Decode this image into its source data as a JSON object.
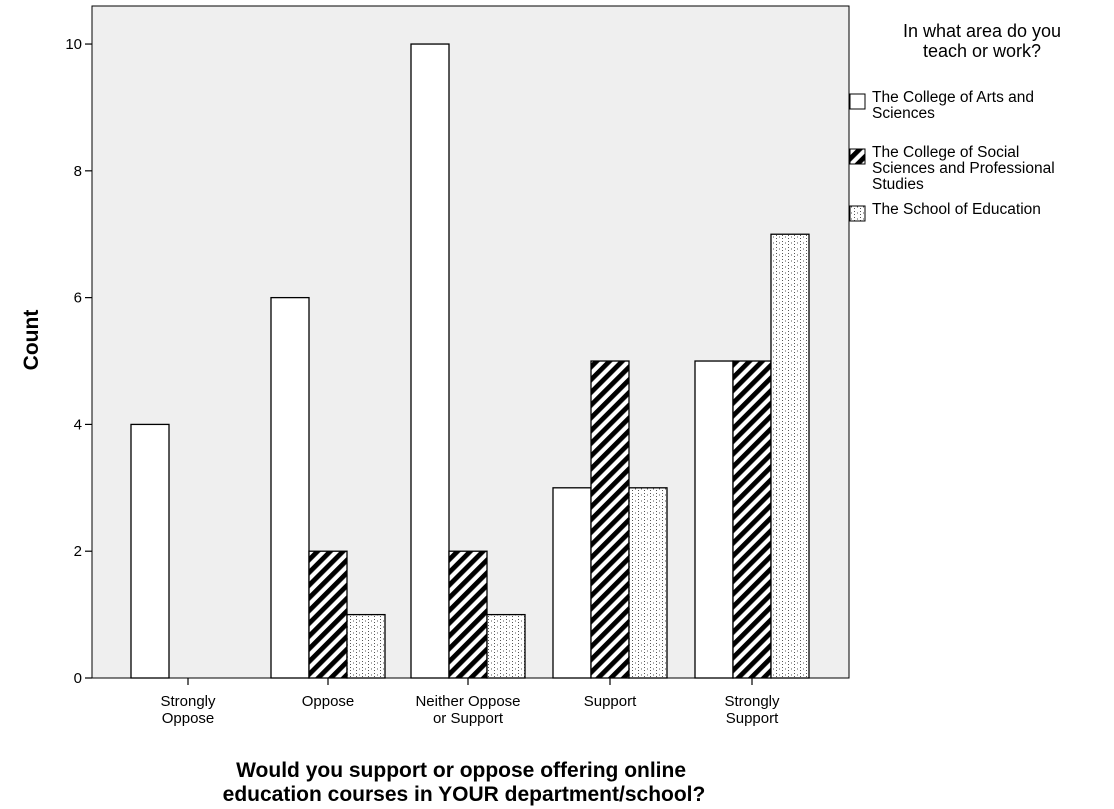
{
  "chart_data": {
    "type": "bar",
    "categories": [
      [
        "Strongly",
        "Oppose"
      ],
      [
        "Oppose"
      ],
      [
        "Neither Oppose",
        "or Support"
      ],
      [
        "Support"
      ],
      [
        "Strongly",
        "Support"
      ]
    ],
    "series": [
      {
        "name": [
          "The College of Arts and",
          "Sciences"
        ],
        "values": [
          4,
          6,
          10,
          3,
          5
        ],
        "pattern": "none"
      },
      {
        "name": [
          "The College of Social",
          "Sciences and Professional",
          "Studies"
        ],
        "values": [
          0,
          2,
          2,
          5,
          5
        ],
        "pattern": "diagonal-stripes"
      },
      {
        "name": [
          "The School of Education"
        ],
        "values": [
          0,
          1,
          1,
          3,
          7
        ],
        "pattern": "dots"
      }
    ],
    "ylabel": "Count",
    "xlabel": [
      "Would you support or oppose offering online",
      "education courses in YOUR department/school?"
    ],
    "legend_title": [
      "In what area do you",
      "teach or work?"
    ],
    "ylim": [
      0,
      10.6
    ],
    "yticks": [
      0,
      2,
      4,
      6,
      8,
      10
    ],
    "grid": false,
    "legend_position": "right",
    "plot_background": "#efefef",
    "bar_fill": "#ffffff",
    "stroke_color": "#000000"
  }
}
